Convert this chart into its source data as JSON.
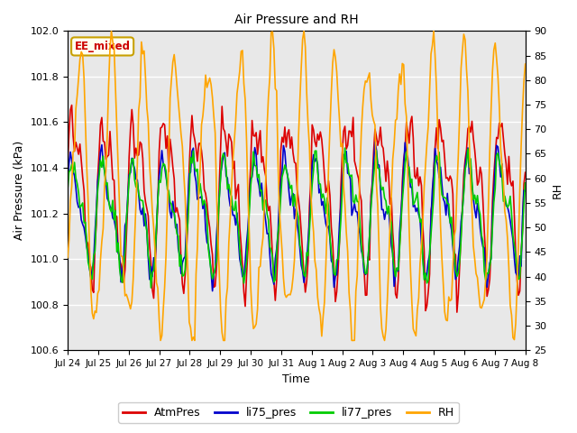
{
  "title": "Air Pressure and RH",
  "xlabel": "Time",
  "ylabel_left": "Air Pressure (kPa)",
  "ylabel_right": "RH",
  "ylim_left": [
    100.6,
    102.0
  ],
  "ylim_right": [
    25,
    90
  ],
  "yticks_left": [
    100.6,
    100.8,
    101.0,
    101.2,
    101.4,
    101.6,
    101.8,
    102.0
  ],
  "yticks_right": [
    25,
    30,
    35,
    40,
    45,
    50,
    55,
    60,
    65,
    70,
    75,
    80,
    85,
    90
  ],
  "bg_color": "#ffffff",
  "plot_bg": "#e8e8e8",
  "grid_color": "#d8d8d8",
  "annotation_text": "EE_mixed",
  "annotation_color": "#cc0000",
  "annotation_bg": "#fffff0",
  "annotation_border": "#c8a000",
  "colors": {
    "AtmPres": "#dd0000",
    "li75_pres": "#0000cc",
    "li77_pres": "#00cc00",
    "RH": "#ffa500"
  },
  "linewidths": {
    "AtmPres": 1.2,
    "li75_pres": 1.2,
    "li77_pres": 1.2,
    "RH": 1.2
  },
  "xtick_labels": [
    "Jul 24",
    "Jul 25",
    "Jul 26",
    "Jul 27",
    "Jul 28",
    "Jul 29",
    "Jul 30",
    "Jul 31",
    "Aug 1",
    "Aug 2",
    "Aug 3",
    "Aug 4",
    "Aug 5",
    "Aug 6",
    "Aug 7",
    "Aug 8"
  ],
  "n_points": 336,
  "seed": 42
}
